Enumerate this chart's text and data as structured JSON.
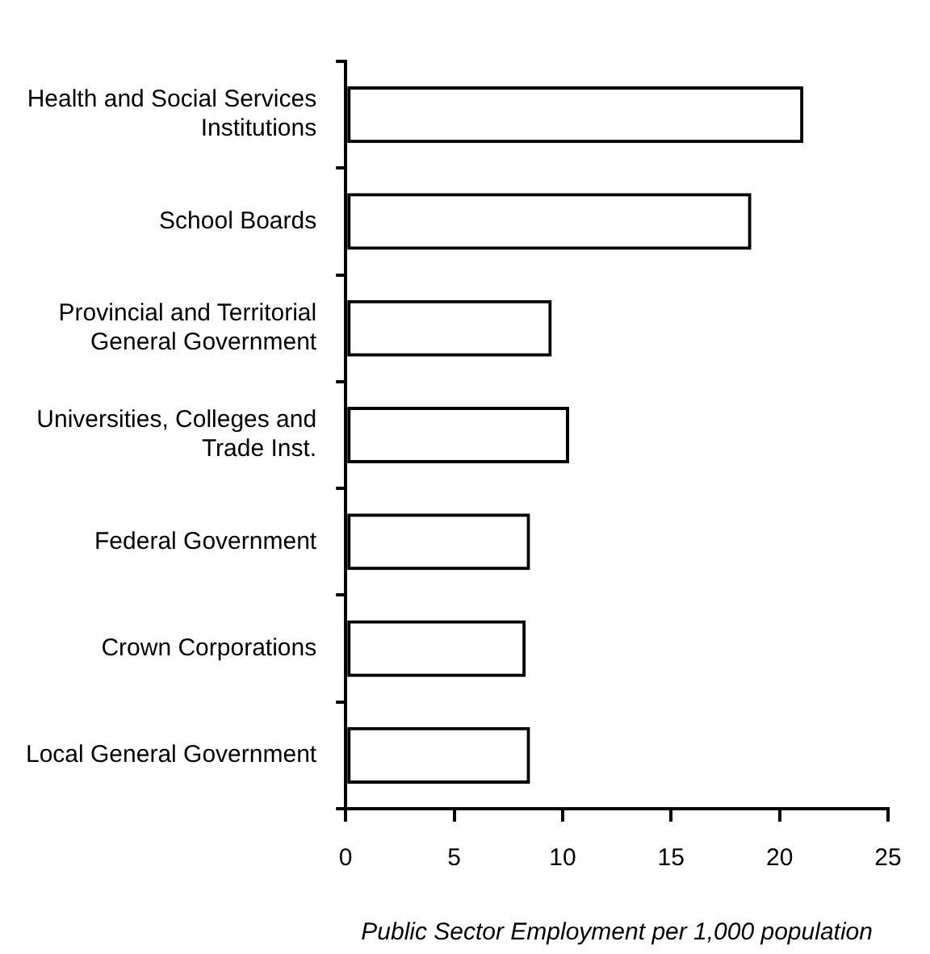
{
  "chart_data": {
    "type": "bar",
    "orientation": "horizontal",
    "xlabel": "Public Sector Employment per 1,000 population",
    "categories": [
      "Health and Social Services Institutions",
      "School Boards",
      "Provincial and Territorial General Government",
      "Universities, Colleges and Trade Inst.",
      "Federal Government",
      "Crown Corporations",
      "Local General Government"
    ],
    "values": [
      21.1,
      18.7,
      9.5,
      10.3,
      8.5,
      8.3,
      8.5
    ],
    "color": "#000000",
    "xlim": [
      0,
      25
    ],
    "xticks": [
      0,
      5,
      10,
      15,
      20,
      25
    ],
    "grid": false,
    "legend": false
  }
}
